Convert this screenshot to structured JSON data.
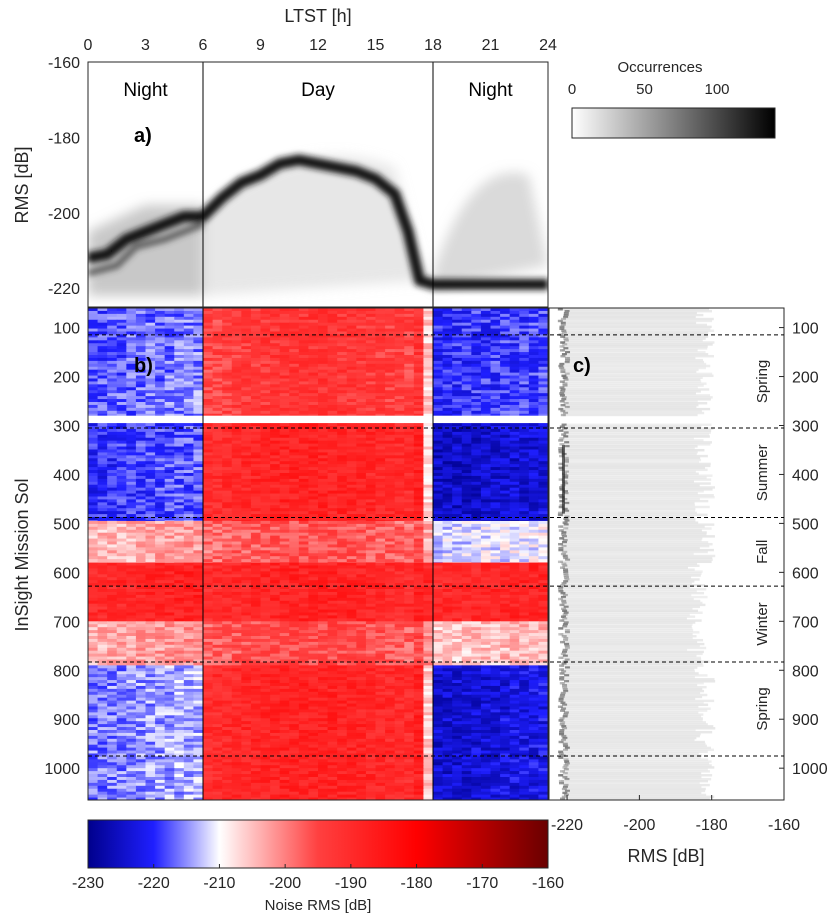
{
  "chart_data": [
    {
      "panel": "a)",
      "type": "heatmap",
      "xlabel": "LTST [h]",
      "ylabel": "RMS [dB]",
      "xlim": [
        0,
        24
      ],
      "ylim": [
        -225,
        -160
      ],
      "xticks": [
        0,
        3,
        6,
        9,
        12,
        15,
        18,
        21,
        24
      ],
      "yticks": [
        -160,
        -180,
        -200,
        -220
      ],
      "dividers_h": [
        6,
        18
      ],
      "zones": [
        {
          "label": "Night",
          "x": 3
        },
        {
          "label": "Day",
          "x": 12
        },
        {
          "label": "Night",
          "x": 21
        }
      ],
      "main_curve": [
        {
          "h": 0,
          "v": -212
        },
        {
          "h": 1,
          "v": -211
        },
        {
          "h": 2,
          "v": -207
        },
        {
          "h": 3,
          "v": -205
        },
        {
          "h": 4,
          "v": -203
        },
        {
          "h": 5,
          "v": -201
        },
        {
          "h": 6,
          "v": -201
        },
        {
          "h": 7,
          "v": -196
        },
        {
          "h": 8,
          "v": -192
        },
        {
          "h": 9,
          "v": -190
        },
        {
          "h": 10,
          "v": -187
        },
        {
          "h": 11,
          "v": -186
        },
        {
          "h": 12,
          "v": -187
        },
        {
          "h": 13,
          "v": -188
        },
        {
          "h": 14,
          "v": -189
        },
        {
          "h": 15,
          "v": -191
        },
        {
          "h": 16,
          "v": -195
        },
        {
          "h": 16.7,
          "v": -205
        },
        {
          "h": 17.3,
          "v": -218
        },
        {
          "h": 18,
          "v": -219
        },
        {
          "h": 20,
          "v": -219
        },
        {
          "h": 22,
          "v": -219
        },
        {
          "h": 24,
          "v": -219
        }
      ],
      "colorbar": {
        "label": "Occurrences",
        "ticks": [
          0,
          50,
          100
        ],
        "range": [
          0,
          140
        ],
        "colors": [
          "#ffffff",
          "#000000"
        ]
      }
    },
    {
      "panel": "b)",
      "type": "heatmap",
      "xlim": [
        0,
        24
      ],
      "ylabel": "InSight Mission Sol",
      "ylim": [
        1065,
        60
      ],
      "yticks": [
        100,
        200,
        300,
        400,
        500,
        600,
        700,
        800,
        900,
        1000
      ],
      "gap_sols": [
        280,
        295
      ],
      "colorbar": {
        "label": "Noise RMS [dB]",
        "ticks": [
          -230,
          -220,
          -210,
          -200,
          -190,
          -180,
          -170,
          -160
        ],
        "range": [
          -230,
          -160
        ],
        "colors": [
          "#00008c",
          "#1f1fff",
          "#ffffff",
          "#ff4040",
          "#ff0000",
          "#6a0000"
        ]
      },
      "season_boundaries": [
        115,
        305,
        488,
        628,
        783,
        975
      ],
      "blocks": [
        {
          "sol0": 60,
          "sol1": 280,
          "night1": -218,
          "day": -192,
          "night2": -220
        },
        {
          "sol0": 295,
          "sol1": 495,
          "night1": -220,
          "day": -188,
          "night2": -225
        },
        {
          "sol0": 495,
          "sol1": 580,
          "night1": -205,
          "day": -196,
          "night2": -212
        },
        {
          "sol0": 580,
          "sol1": 700,
          "night1": -190,
          "day": -188,
          "night2": -190
        },
        {
          "sol0": 700,
          "sol1": 790,
          "night1": -204,
          "day": -195,
          "night2": -206
        },
        {
          "sol0": 790,
          "sol1": 1065,
          "night1": -216,
          "day": -188,
          "night2": -224
        }
      ]
    },
    {
      "panel": "c)",
      "type": "heatmap",
      "xlabel": "RMS [dB]",
      "xlim": [
        -225,
        -160
      ],
      "xticks": [
        -220,
        -200,
        -180,
        -160
      ],
      "ylim": [
        1065,
        60
      ],
      "yticks": [
        100,
        200,
        300,
        400,
        500,
        600,
        700,
        800,
        900,
        1000
      ],
      "seasons": [
        {
          "label": "Spring",
          "sol0": 115,
          "sol1": 305
        },
        {
          "label": "Summer",
          "sol0": 305,
          "sol1": 488
        },
        {
          "label": "Fall",
          "sol0": 488,
          "sol1": 628
        },
        {
          "label": "Winter",
          "sol0": 628,
          "sol1": 783
        },
        {
          "label": "Spring",
          "sol0": 783,
          "sol1": 975
        }
      ],
      "left_edge_rms": -221,
      "right_edge_rms": -182
    }
  ]
}
